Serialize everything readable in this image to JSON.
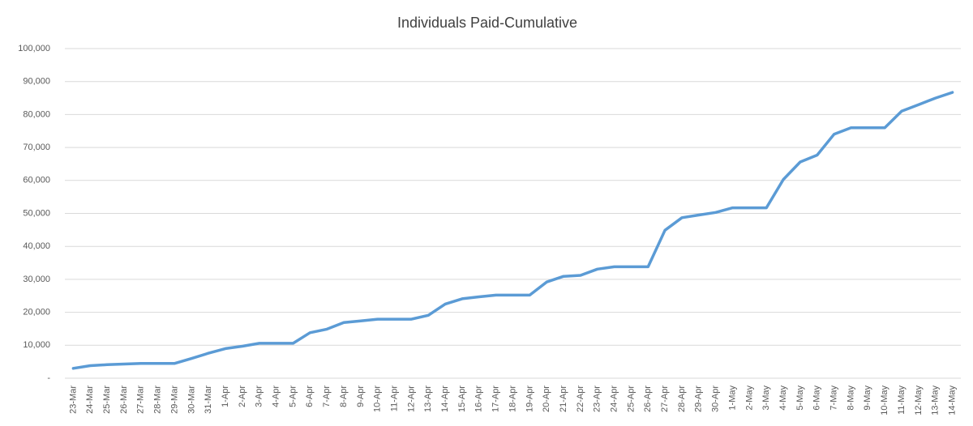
{
  "chart_data": {
    "type": "line",
    "title": "Individuals Paid-Cumulative",
    "categories": [
      "23-Mar",
      "24-Mar",
      "25-Mar",
      "26-Mar",
      "27-Mar",
      "28-Mar",
      "29-Mar",
      "30-Mar",
      "31-Mar",
      "1-Apr",
      "2-Apr",
      "3-Apr",
      "4-Apr",
      "5-Apr",
      "6-Apr",
      "7-Apr",
      "8-Apr",
      "9-Apr",
      "10-Apr",
      "11-Apr",
      "12-Apr",
      "13-Apr",
      "14-Apr",
      "15-Apr",
      "16-Apr",
      "17-Apr",
      "18-Apr",
      "19-Apr",
      "20-Apr",
      "21-Apr",
      "22-Apr",
      "23-Apr",
      "24-Apr",
      "25-Apr",
      "26-Apr",
      "27-Apr",
      "28-Apr",
      "29-Apr",
      "30-Apr",
      "1-May",
      "2-May",
      "3-May",
      "4-May",
      "5-May",
      "6-May",
      "7-May",
      "8-May",
      "9-May",
      "10-May",
      "11-May",
      "12-May",
      "13-May",
      "14-May"
    ],
    "values": [
      3000,
      3800,
      4100,
      4300,
      4500,
      4500,
      4500,
      6000,
      7600,
      9000,
      9700,
      10600,
      10600,
      10600,
      13800,
      14900,
      16900,
      17400,
      17900,
      17900,
      17900,
      19100,
      22500,
      24100,
      24700,
      25200,
      25200,
      25200,
      29200,
      30900,
      31200,
      33100,
      33800,
      33800,
      33800,
      44900,
      48700,
      49500,
      50300,
      51700,
      51700,
      51700,
      60300,
      65600,
      67700,
      74000,
      76000,
      76000,
      76000,
      81000,
      83000,
      85000,
      86700
    ],
    "color": "#5b9bd5",
    "ylim": [
      0,
      100000
    ],
    "yticks": [
      {
        "value": 0,
        "label": "-"
      },
      {
        "value": 10000,
        "label": "10,000"
      },
      {
        "value": 20000,
        "label": "20,000"
      },
      {
        "value": 30000,
        "label": "30,000"
      },
      {
        "value": 40000,
        "label": "40,000"
      },
      {
        "value": 50000,
        "label": "50,000"
      },
      {
        "value": 60000,
        "label": "60,000"
      },
      {
        "value": 70000,
        "label": "70,000"
      },
      {
        "value": 80000,
        "label": "80,000"
      },
      {
        "value": 90000,
        "label": "90,000"
      },
      {
        "value": 100000,
        "label": "100,000"
      }
    ],
    "grid": true
  }
}
